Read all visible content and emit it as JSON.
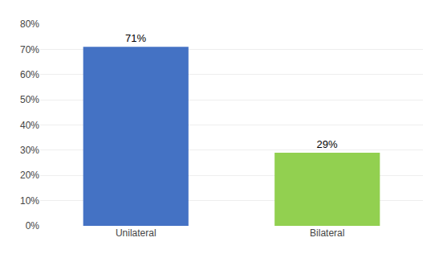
{
  "chart_data": {
    "type": "bar",
    "categories": [
      "Unilateral",
      "Bilateral"
    ],
    "values": [
      71,
      29
    ],
    "value_labels": [
      "71%",
      "29%"
    ],
    "data_labels": true,
    "colors": [
      "#4472C4",
      "#92D050"
    ],
    "ylim": [
      0,
      80
    ],
    "yticks": [
      {
        "value": 0,
        "label": "0%"
      },
      {
        "value": 10,
        "label": "10%"
      },
      {
        "value": 20,
        "label": "20%"
      },
      {
        "value": 30,
        "label": "30%"
      },
      {
        "value": 40,
        "label": "40%"
      },
      {
        "value": 50,
        "label": "50%"
      },
      {
        "value": 60,
        "label": "60%"
      },
      {
        "value": 70,
        "label": "70%"
      },
      {
        "value": 80,
        "label": "80%"
      }
    ],
    "grid": true
  }
}
